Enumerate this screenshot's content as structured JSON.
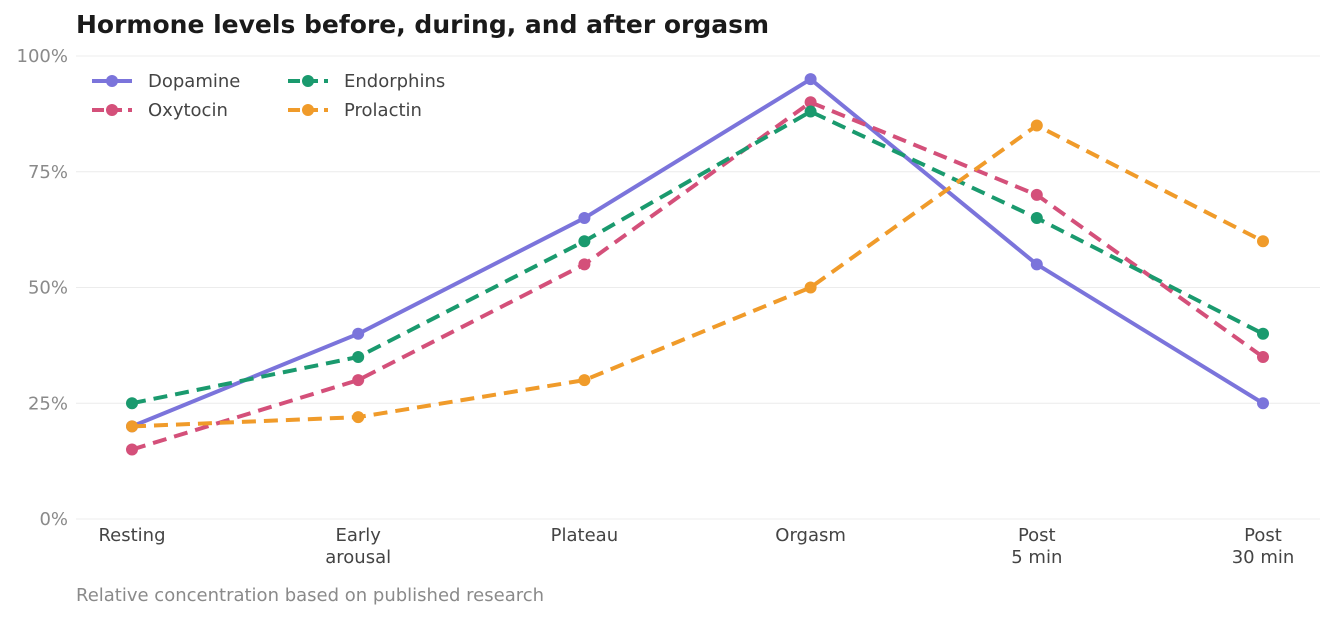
{
  "chart_data": {
    "type": "line",
    "title": "Hormone levels before, during, and after orgasm",
    "caption": "Relative concentration based on published research",
    "categories": [
      [
        "Resting"
      ],
      [
        "Early",
        "arousal"
      ],
      [
        "Plateau"
      ],
      [
        "Orgasm"
      ],
      [
        "Post",
        "5 min"
      ],
      [
        "Post",
        "30 min"
      ]
    ],
    "ylim": [
      0,
      100
    ],
    "y_ticks": [
      0,
      25,
      50,
      75,
      100
    ],
    "y_tick_labels": [
      "0%",
      "25%",
      "50%",
      "75%",
      "100%"
    ],
    "grid": "horizontal",
    "legend_placement": "top-left",
    "series": [
      {
        "name": "Dopamine",
        "values": [
          20,
          40,
          65,
          95,
          55,
          25
        ],
        "color": "#7b74db",
        "style": "solid"
      },
      {
        "name": "Oxytocin",
        "values": [
          15,
          30,
          55,
          90,
          70,
          35
        ],
        "color": "#d4507a",
        "style": "dashed"
      },
      {
        "name": "Endorphins",
        "values": [
          25,
          35,
          60,
          88,
          65,
          40
        ],
        "color": "#1a9a6e",
        "style": "dashed"
      },
      {
        "name": "Prolactin",
        "values": [
          20,
          22,
          30,
          50,
          85,
          60
        ],
        "color": "#f09b2a",
        "style": "dashed"
      }
    ]
  }
}
